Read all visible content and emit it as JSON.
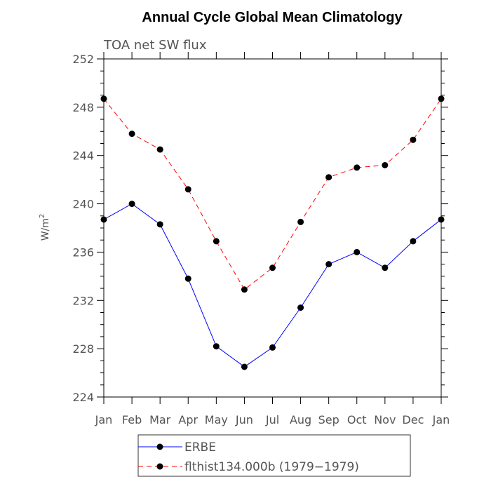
{
  "chart_data": {
    "type": "line",
    "title": "Annual Cycle Global Mean Climatology",
    "subtitle": "TOA net SW flux",
    "xlabel": "",
    "ylabel": "W/m",
    "ylabel_superscript": "2",
    "categories": [
      "Jan",
      "Feb",
      "Mar",
      "Apr",
      "May",
      "Jun",
      "Jul",
      "Aug",
      "Sep",
      "Oct",
      "Nov",
      "Dec",
      "Jan"
    ],
    "ylim": [
      224,
      252
    ],
    "yticks": [
      "224",
      "228",
      "232",
      "236",
      "240",
      "244",
      "248",
      "252"
    ],
    "series": [
      {
        "name": "ERBE",
        "color": "#0000ff",
        "style": "solid",
        "values": [
          238.7,
          240.0,
          238.3,
          233.8,
          228.2,
          226.5,
          228.1,
          231.4,
          235.0,
          236.0,
          234.7,
          236.9,
          238.7
        ]
      },
      {
        "name": "flthist134.000b (1979-1979)",
        "color": "#ff0000",
        "style": "dashed",
        "values": [
          248.7,
          245.8,
          244.5,
          241.2,
          236.9,
          232.9,
          234.7,
          238.5,
          242.2,
          243.0,
          243.2,
          245.3,
          248.7
        ]
      }
    ],
    "legend": {
      "entries": [
        "ERBE",
        "flthist134.000b (1979−1979)"
      ],
      "placement": "bottom"
    }
  }
}
